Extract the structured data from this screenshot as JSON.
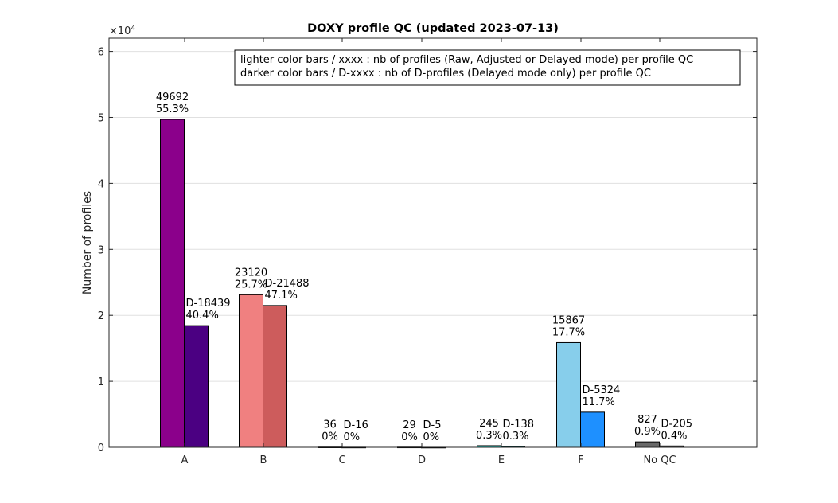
{
  "chart_data": {
    "type": "bar",
    "title": "DOXY profile QC (updated 2023-07-13)",
    "xlabel": "",
    "ylabel": "Number of profiles",
    "y_exponent_label": "×10",
    "y_exponent_power": "4",
    "ylim": [
      0,
      62000
    ],
    "yticks": [
      0,
      10000,
      20000,
      30000,
      40000,
      50000,
      60000
    ],
    "ytick_labels": [
      "0",
      "1",
      "2",
      "3",
      "4",
      "5",
      "6"
    ],
    "grid": true,
    "categories": [
      "A",
      "B",
      "C",
      "D",
      "E",
      "F",
      "No QC"
    ],
    "series": [
      {
        "key": "all",
        "values": [
          49692,
          23120,
          36,
          29,
          245,
          15867,
          827
        ],
        "labels_line1": [
          "49692",
          "23120",
          "36",
          "29",
          "245",
          "15867",
          "827"
        ],
        "labels_line2": [
          "55.3%",
          "25.7%",
          "0%",
          "0%",
          "0.3%",
          "17.7%",
          "0.9%"
        ],
        "colors": [
          "#8B008B",
          "#F08080",
          "#FF0000",
          "#FF9900",
          "#20B2AA",
          "#87CEEB",
          "#696969"
        ]
      },
      {
        "key": "delayed",
        "values": [
          18439,
          21488,
          16,
          5,
          138,
          5324,
          205
        ],
        "labels_line1": [
          "D-18439",
          "D-21488",
          "D-16",
          "D-5",
          "D-138",
          "D-5324",
          "D-205"
        ],
        "labels_line2": [
          "40.4%",
          "47.1%",
          "0%",
          "0%",
          "0.3%",
          "11.7%",
          "0.4%"
        ],
        "colors": [
          "#4B0082",
          "#CD5C5C",
          "#CC0000",
          "#CC6600",
          "#008B8B",
          "#1E90FF",
          "#2F2F2F"
        ]
      }
    ],
    "legend": {
      "placement": "top-right",
      "lines": [
        "lighter color bars / xxxx : nb of profiles (Raw, Adjusted or Delayed mode) per profile QC",
        "darker color bars / D-xxxx : nb of D-profiles (Delayed mode only) per profile QC"
      ]
    }
  }
}
